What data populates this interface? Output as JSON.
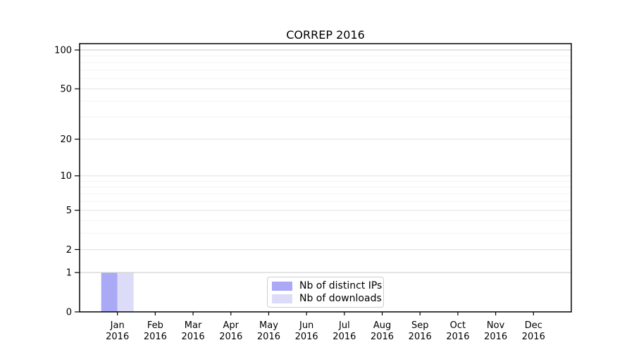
{
  "chart_data": {
    "type": "bar",
    "title": "CORREP 2016",
    "categories": [
      "Jan",
      "Feb",
      "Mar",
      "Apr",
      "May",
      "Jun",
      "Jul",
      "Aug",
      "Sep",
      "Oct",
      "Nov",
      "Dec"
    ],
    "year_label": "2016",
    "series": [
      {
        "name": "Nb of distinct IPs",
        "color": "#a9a9f5",
        "values": [
          1,
          0,
          0,
          0,
          0,
          0,
          0,
          0,
          0,
          0,
          0,
          0
        ]
      },
      {
        "name": "Nb of downloads",
        "color": "#dcdcf8",
        "values": [
          1,
          0,
          0,
          0,
          0,
          0,
          0,
          0,
          0,
          0,
          0,
          0
        ]
      }
    ],
    "xlabel": "",
    "ylabel": "",
    "yscale": "log1p",
    "ylim": [
      0,
      112
    ],
    "yticks": [
      0,
      1,
      2,
      5,
      10,
      20,
      50,
      100
    ],
    "yticks_minor": [
      3,
      4,
      6,
      7,
      8,
      9,
      30,
      40,
      60,
      70,
      80,
      90
    ],
    "emphasized_gridlines": [
      1,
      100
    ],
    "grid": true,
    "legend_position": "lower center"
  },
  "colors": {
    "axis": "#000000",
    "tick_label": "#000000",
    "grid_major": "#e0e0e0",
    "grid_minor": "#f2f2f2",
    "grid_emphasis": "#c9c9c9",
    "legend_border": "#cccccc",
    "background": "#ffffff"
  }
}
